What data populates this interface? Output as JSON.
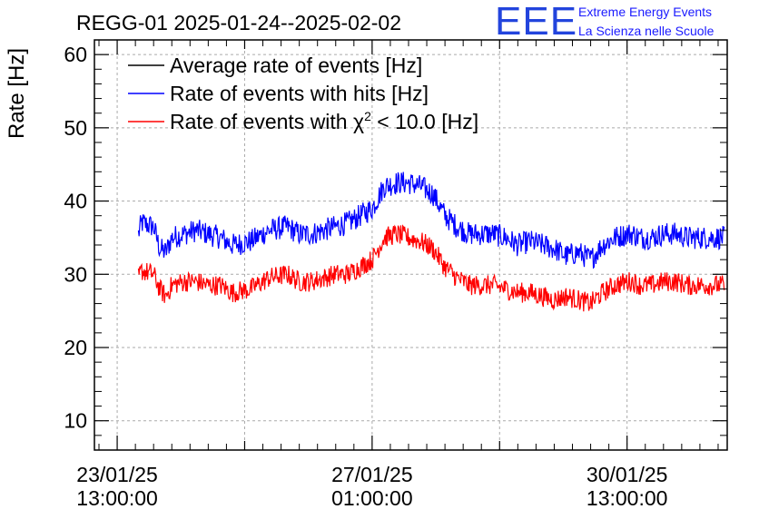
{
  "chart_data": {
    "type": "line",
    "title": "REGG-01 2025-01-24--2025-02-02",
    "ylabel": "Rate [Hz]",
    "xlabel": "",
    "ylim": [
      6,
      62
    ],
    "y_ticks": [
      10,
      20,
      30,
      40,
      50,
      60
    ],
    "x_tick_labels": [
      {
        "date": "23/01/25",
        "time": "13:00:00"
      },
      {
        "date": "27/01/25",
        "time": "01:00:00"
      },
      {
        "date": "30/01/25",
        "time": "13:00:00"
      }
    ],
    "grid": true,
    "legend_position": "top-left",
    "x_unit": "hours since 23/01/25 13:00:00",
    "xlim": [
      -7.5,
      201
    ],
    "series": [
      {
        "name": "Average rate of events [Hz]",
        "color": "#000000",
        "x": [],
        "values": []
      },
      {
        "name": "Rate of events with hits [Hz]",
        "color": "#0000ff",
        "noise": 1.6,
        "x": [
          7,
          8,
          12,
          14,
          16,
          18,
          22,
          26,
          30,
          34,
          38,
          44,
          50,
          56,
          60,
          64,
          68,
          72,
          76,
          80,
          84,
          88,
          92,
          96,
          100,
          104,
          108,
          112,
          116,
          120,
          124,
          128,
          132,
          136,
          140,
          144,
          148,
          152,
          156,
          160,
          164,
          168,
          170,
          172,
          174,
          176,
          180,
          184,
          188,
          192,
          196,
          200
        ],
        "values": [
          35.5,
          37,
          36.5,
          33.5,
          33,
          35,
          35.5,
          36,
          35.5,
          35,
          34,
          34.5,
          36,
          36.5,
          35.5,
          35.5,
          36,
          36.5,
          37,
          38,
          39,
          42,
          42.5,
          42.5,
          42,
          41,
          38,
          36.5,
          35.5,
          35.5,
          35.5,
          35,
          34,
          34.5,
          34,
          33.5,
          32.5,
          33,
          32,
          34,
          35,
          35.5,
          35.5,
          35,
          35,
          35,
          35.5,
          35.5,
          35,
          35,
          35,
          35
        ]
      },
      {
        "name": "Rate of events with χ² < 10.0 [Hz]",
        "color": "#ff0000",
        "noise": 1.4,
        "x": [
          7,
          8,
          12,
          14,
          16,
          18,
          22,
          26,
          30,
          34,
          38,
          44,
          50,
          56,
          60,
          64,
          68,
          72,
          76,
          80,
          84,
          88,
          92,
          96,
          100,
          104,
          108,
          112,
          116,
          120,
          124,
          128,
          132,
          136,
          140,
          144,
          148,
          152,
          156,
          160,
          164,
          168,
          170,
          172,
          174,
          176,
          180,
          184,
          188,
          192,
          196,
          200
        ],
        "values": [
          29.5,
          30.5,
          30,
          28,
          27,
          28.5,
          29,
          29,
          28.5,
          28.5,
          27.5,
          28,
          29.5,
          30,
          29,
          29,
          29.5,
          30,
          30,
          31,
          32,
          35,
          35.5,
          35,
          34.5,
          33.5,
          31,
          29.5,
          28.5,
          28.5,
          28.5,
          28,
          27.5,
          27.5,
          27,
          26.5,
          27,
          26.5,
          26,
          27.5,
          28.5,
          29,
          29,
          28.5,
          28.5,
          28.5,
          29,
          29,
          28.5,
          28.5,
          28.5,
          28.5
        ]
      }
    ],
    "legend_label_parts": [
      {
        "text": "Average rate of events [Hz]"
      },
      {
        "text": "Rate of events with hits [Hz]"
      },
      {
        "pre": "Rate of events with ",
        "chi": "χ",
        "sup": "2",
        "post": " < 10.0 [Hz]"
      }
    ]
  },
  "logo": {
    "mark": "EEE",
    "line1": "Extreme Energy Events",
    "line2": "La Scienza nelle Scuole",
    "color": "#1a1aff"
  }
}
